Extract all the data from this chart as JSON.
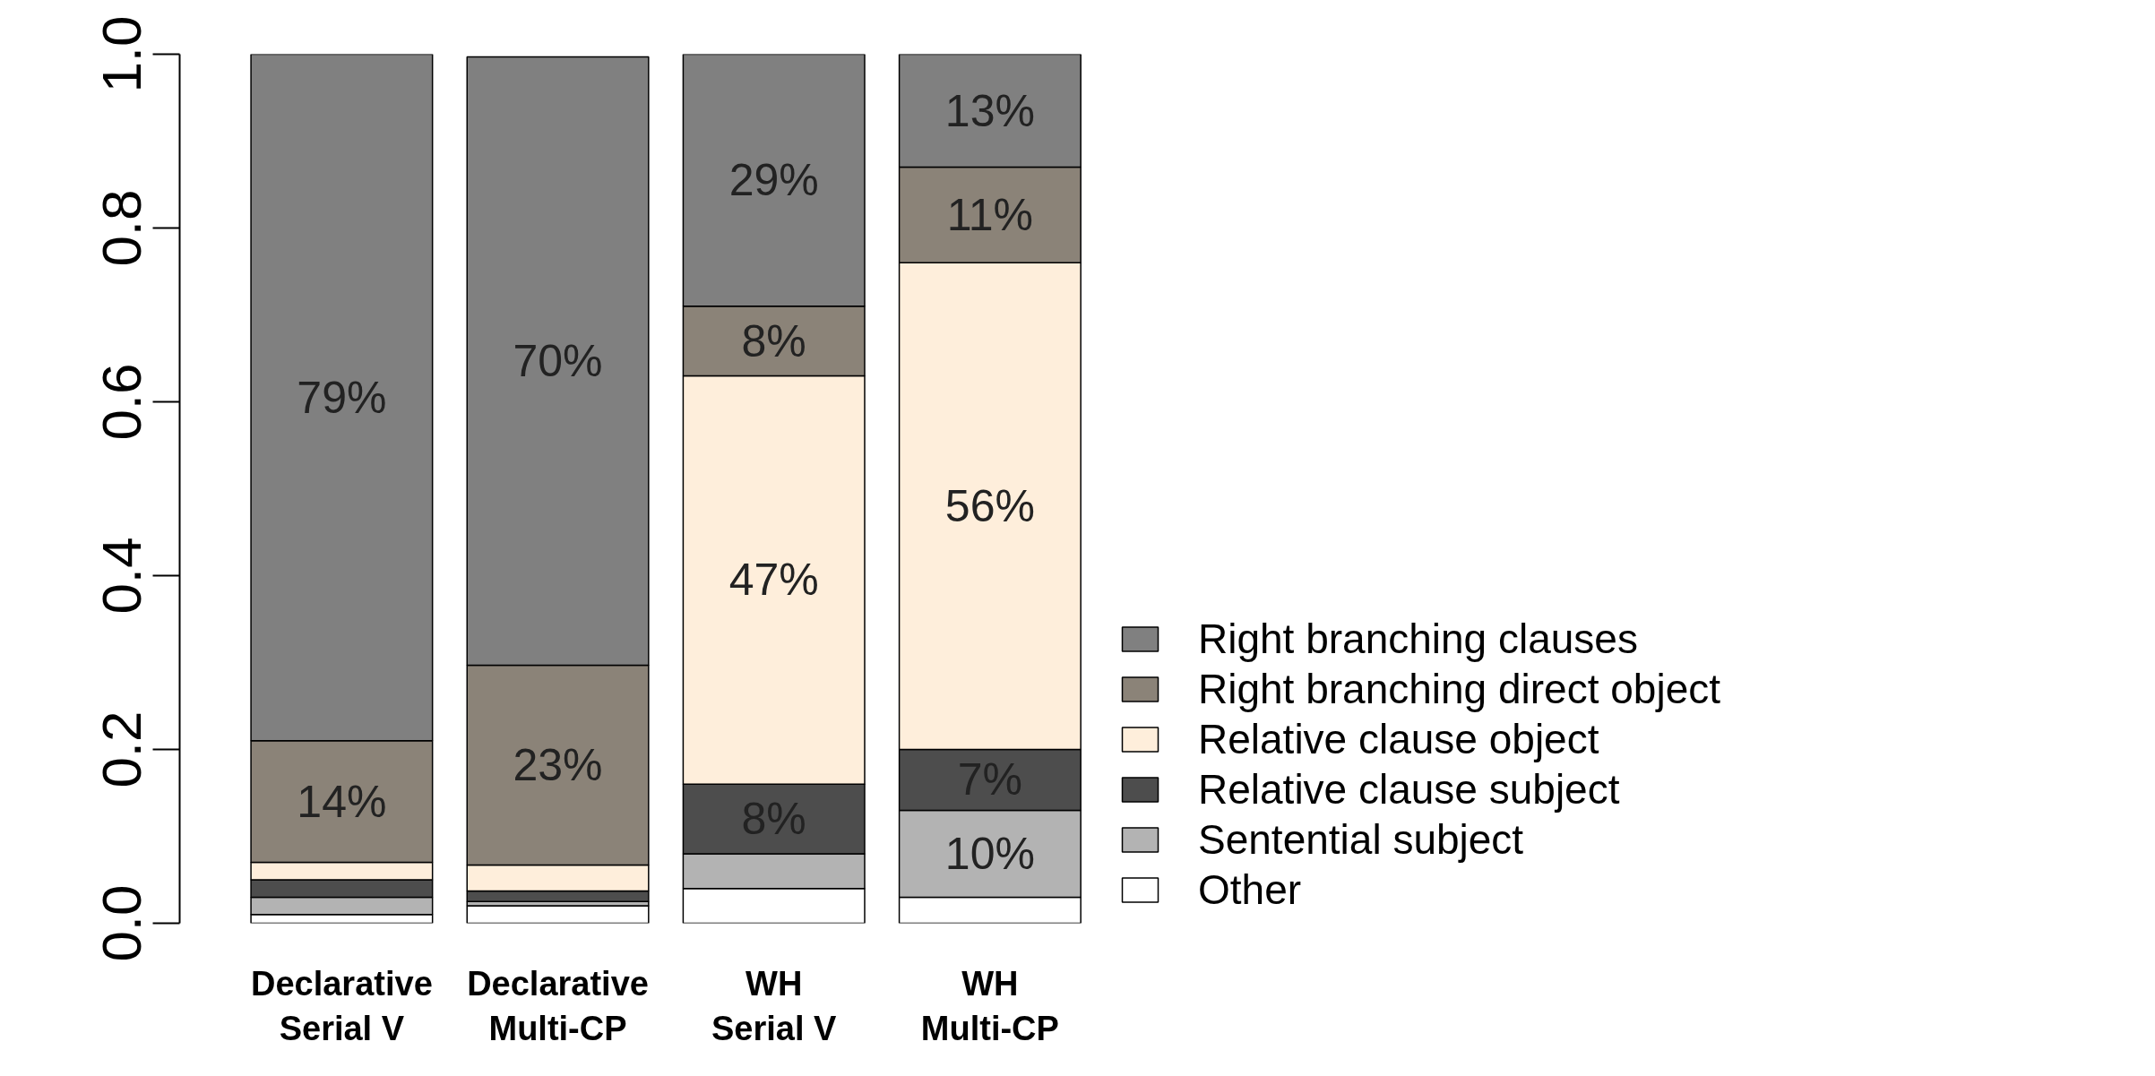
{
  "chart_data": {
    "type": "bar",
    "stacked": true,
    "categories": [
      "Declarative\nSerial V",
      "Declarative\nMulti-CP",
      "WH\nSerial V",
      "WH\nMulti-CP"
    ],
    "series": [
      {
        "name": "Other",
        "color": "#ffffff",
        "values": [
          0.01,
          0.02,
          0.04,
          0.03
        ],
        "value_labels": [
          null,
          null,
          null,
          null
        ]
      },
      {
        "name": "Sentential subject",
        "color": "#b3b3b3",
        "values": [
          0.02,
          0.005,
          0.04,
          0.1
        ],
        "value_labels": [
          null,
          null,
          null,
          "10%"
        ]
      },
      {
        "name": "Relative clause subject",
        "color": "#4d4d4d",
        "values": [
          0.02,
          0.012,
          0.08,
          0.07
        ],
        "value_labels": [
          null,
          null,
          "8%",
          "7%"
        ]
      },
      {
        "name": "Relative clause object",
        "color": "#feeedb",
        "values": [
          0.02,
          0.03,
          0.47,
          0.56
        ],
        "value_labels": [
          null,
          null,
          "47%",
          "56%"
        ]
      },
      {
        "name": "Right branching direct object",
        "color": "#8b8378",
        "values": [
          0.14,
          0.23,
          0.08,
          0.11
        ],
        "value_labels": [
          "14%",
          "23%",
          "8%",
          "11%"
        ]
      },
      {
        "name": "Right branching clauses",
        "color": "#808080",
        "values": [
          0.79,
          0.7,
          0.29,
          0.13
        ],
        "value_labels": [
          "79%",
          "70%",
          "29%",
          "13%"
        ]
      }
    ],
    "ylim": [
      0,
      1
    ],
    "yticks": [
      {
        "value": 0,
        "label": "0.0"
      },
      {
        "value": 0.2,
        "label": "0.2"
      },
      {
        "value": 0.4,
        "label": "0.4"
      },
      {
        "value": 0.6,
        "label": "0.6"
      },
      {
        "value": 0.8,
        "label": "0.8"
      },
      {
        "value": 1,
        "label": "1.0"
      }
    ],
    "grid": false,
    "legend": "bottom right"
  }
}
